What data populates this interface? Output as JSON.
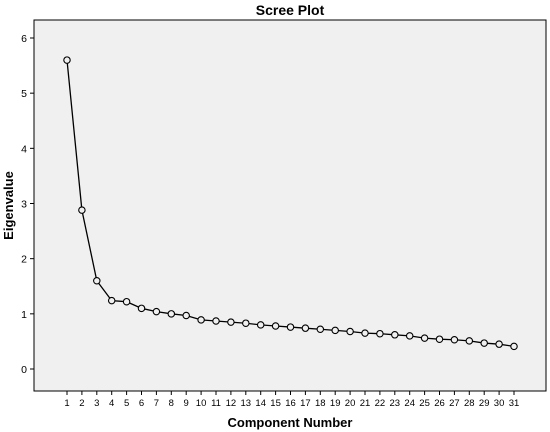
{
  "chart_data": {
    "type": "line",
    "title": "Scree Plot",
    "xlabel": "Component Number",
    "ylabel": "Eigenvalue",
    "x": [
      1,
      2,
      3,
      4,
      5,
      6,
      7,
      8,
      9,
      10,
      11,
      12,
      13,
      14,
      15,
      16,
      17,
      18,
      19,
      20,
      21,
      22,
      23,
      24,
      25,
      26,
      27,
      28,
      29,
      30,
      31
    ],
    "values": [
      5.6,
      2.88,
      1.6,
      1.24,
      1.22,
      1.1,
      1.04,
      1.0,
      0.97,
      0.89,
      0.87,
      0.85,
      0.83,
      0.8,
      0.78,
      0.76,
      0.74,
      0.72,
      0.7,
      0.68,
      0.65,
      0.64,
      0.62,
      0.6,
      0.56,
      0.54,
      0.53,
      0.51,
      0.47,
      0.45,
      0.41
    ],
    "xlim": [
      1,
      31
    ],
    "ylim": [
      0,
      6
    ],
    "yticks": [
      0,
      1,
      2,
      3,
      4,
      5,
      6
    ],
    "grid": false,
    "marker": "open-circle",
    "plot_background": "#f0f0f0",
    "line_color": "#000000"
  }
}
